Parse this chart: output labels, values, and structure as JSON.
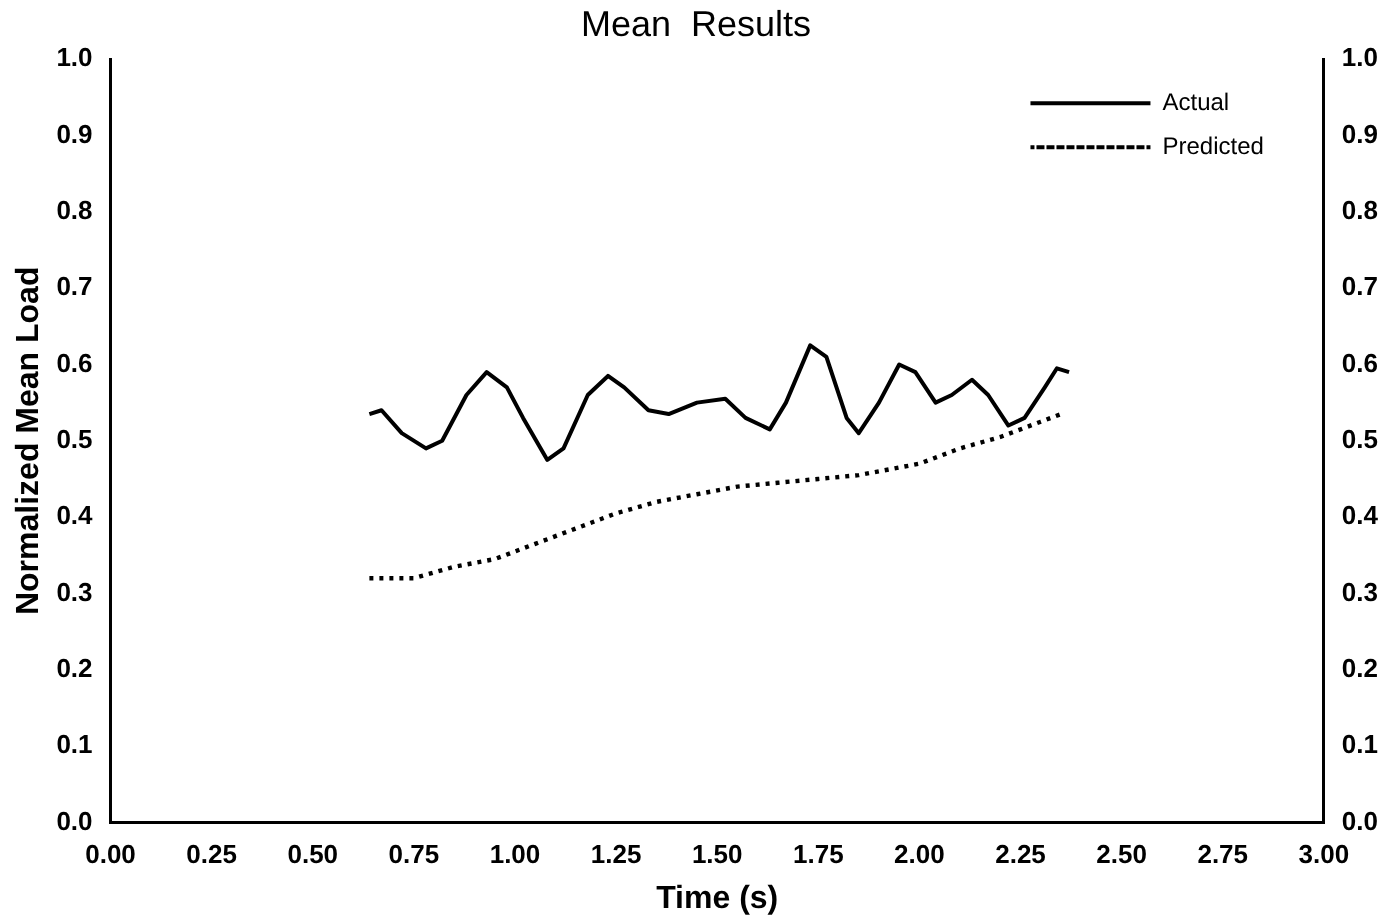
{
  "chart_data": {
    "type": "line",
    "title": "Mean  Results",
    "xlabel": "Time (s)",
    "ylabel": "Normalized Mean Load",
    "xlim": [
      0,
      3
    ],
    "xticks": [
      {
        "value": 0,
        "label": "0.00"
      },
      {
        "value": 0.25,
        "label": "0.25"
      },
      {
        "value": 0.5,
        "label": "0.50"
      },
      {
        "value": 0.75,
        "label": "0.75"
      },
      {
        "value": 1,
        "label": "1.00"
      },
      {
        "value": 1.25,
        "label": "1.25"
      },
      {
        "value": 1.5,
        "label": "1.50"
      },
      {
        "value": 1.75,
        "label": "1.75"
      },
      {
        "value": 2,
        "label": "2.00"
      },
      {
        "value": 2.25,
        "label": "2.25"
      },
      {
        "value": 2.5,
        "label": "2.50"
      },
      {
        "value": 2.75,
        "label": "2.75"
      },
      {
        "value": 3,
        "label": "3.00"
      }
    ],
    "ylim": [
      0,
      1
    ],
    "yticks": [
      {
        "value": 0,
        "label": "0.0"
      },
      0.1,
      0.2,
      0.3,
      0.4,
      0.5,
      0.6,
      0.7,
      0.8,
      0.9,
      {
        "value": 1,
        "label": "1.0"
      }
    ],
    "y2lim": [
      0,
      1
    ],
    "y2ticks": [
      {
        "value": 0,
        "label": "0.0"
      },
      0.1,
      0.2,
      0.3,
      0.4,
      0.5,
      0.6,
      0.7,
      0.8,
      0.9,
      {
        "value": 1,
        "label": "1.0"
      }
    ],
    "grid": false,
    "legend": "top right",
    "marker": "none",
    "series": [
      {
        "name": "Actual",
        "color": "#000000",
        "line_style": "solid",
        "x": [
          0.64,
          0.67,
          0.72,
          0.78,
          0.82,
          0.88,
          0.93,
          0.98,
          1.02,
          1.08,
          1.12,
          1.18,
          1.23,
          1.27,
          1.33,
          1.38,
          1.45,
          1.52,
          1.57,
          1.63,
          1.67,
          1.73,
          1.77,
          1.82,
          1.85,
          1.9,
          1.95,
          1.99,
          2.04,
          2.08,
          2.13,
          2.17,
          2.22,
          2.26,
          2.31,
          2.34,
          2.37
        ],
        "values": [
          0.535,
          0.54,
          0.51,
          0.49,
          0.5,
          0.56,
          0.59,
          0.57,
          0.53,
          0.475,
          0.49,
          0.56,
          0.585,
          0.57,
          0.54,
          0.535,
          0.55,
          0.555,
          0.53,
          0.515,
          0.55,
          0.625,
          0.61,
          0.53,
          0.51,
          0.55,
          0.6,
          0.59,
          0.55,
          0.56,
          0.58,
          0.56,
          0.52,
          0.53,
          0.57,
          0.595,
          0.59
        ]
      },
      {
        "name": "Predicted",
        "color": "#000000",
        "line_style": "dotted",
        "x": [
          0.64,
          0.75,
          0.85,
          0.95,
          1.05,
          1.15,
          1.25,
          1.35,
          1.45,
          1.55,
          1.65,
          1.75,
          1.85,
          1.95,
          2.0,
          2.1,
          2.2,
          2.3,
          2.35
        ],
        "values": [
          0.32,
          0.32,
          0.335,
          0.345,
          0.365,
          0.385,
          0.405,
          0.42,
          0.43,
          0.44,
          0.445,
          0.45,
          0.455,
          0.465,
          0.47,
          0.49,
          0.505,
          0.525,
          0.535
        ]
      }
    ]
  }
}
